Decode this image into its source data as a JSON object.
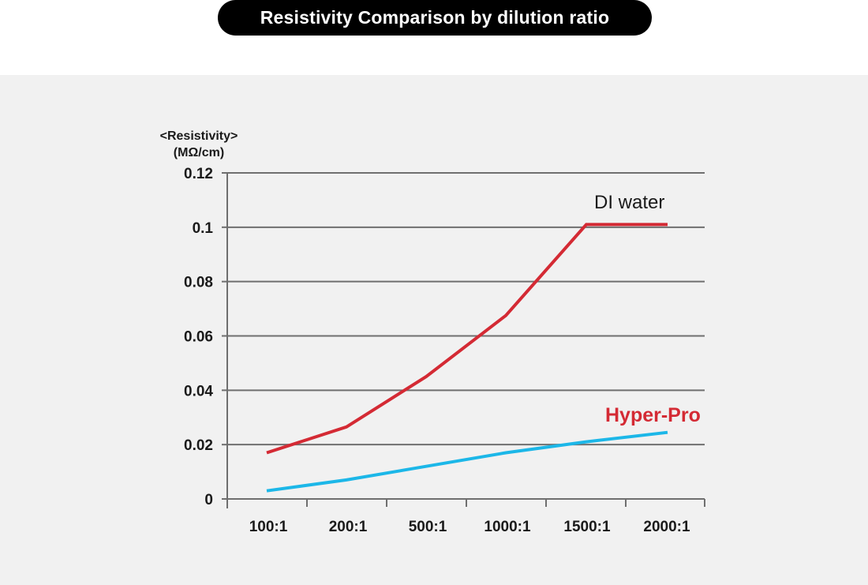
{
  "title": "Resistivity Comparison by dilution ratio",
  "colors": {
    "panel_bg": "#f1f1f1",
    "grid": "#6f6f6f",
    "axis_text": "#1a1a1a",
    "di_water": "#d42a34",
    "hyper_pro": "#1cb7e8",
    "hyper_pro_label": "#d42a34"
  },
  "chart_data": {
    "type": "line",
    "ylabel_line1": "<Resistivity>",
    "ylabel_line2": "(MΩ/cm)",
    "xlabel": "",
    "categories": [
      "100:1",
      "200:1",
      "500:1",
      "1000:1",
      "1500:1",
      "2000:1"
    ],
    "ylim": [
      0,
      0.12
    ],
    "yticks": [
      "0",
      "0.02",
      "0.04",
      "0.06",
      "0.08",
      "0.1",
      "0.12"
    ],
    "grid": true,
    "series": [
      {
        "name": "DI water",
        "values": [
          0.017,
          0.0265,
          0.045,
          0.0675,
          0.101,
          0.101
        ]
      },
      {
        "name": "Hyper-Pro",
        "values": [
          0.003,
          0.007,
          0.012,
          0.017,
          0.021,
          0.0245
        ]
      }
    ]
  }
}
